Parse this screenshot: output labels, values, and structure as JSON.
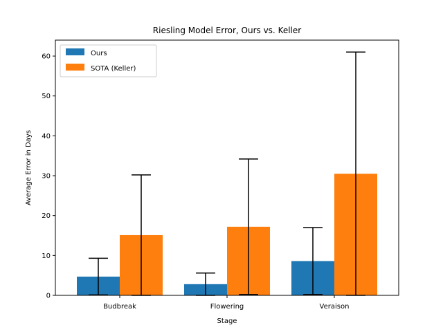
{
  "chart_data": {
    "type": "bar",
    "title": "Riesling Model Error, Ours vs. Keller",
    "xlabel": "Stage",
    "ylabel": "Average Error in Days",
    "categories": [
      "Budbreak",
      "Flowering",
      "Veraison"
    ],
    "series": [
      {
        "name": "Ours",
        "color": "#1f77b4",
        "values": [
          4.7,
          2.8,
          8.6
        ],
        "errors": [
          4.6,
          2.8,
          8.4
        ]
      },
      {
        "name": "SOTA (Keller)",
        "color": "#ff7f0e",
        "values": [
          15.1,
          17.2,
          30.5
        ],
        "errors": [
          15.1,
          17.0,
          30.5
        ]
      }
    ],
    "ylim": [
      0,
      64
    ],
    "yticks": [
      0,
      10,
      20,
      30,
      40,
      50,
      60
    ],
    "grid": false,
    "legend": "top-left"
  }
}
